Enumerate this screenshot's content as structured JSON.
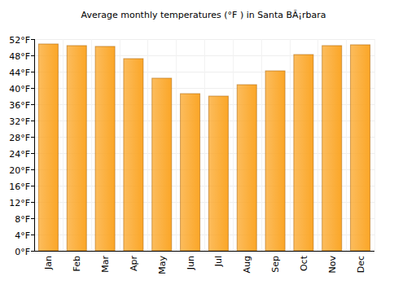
{
  "chart_data": {
    "type": "bar",
    "title": "Average monthly temperatures (°F ) in Santa BÃ¡rbara",
    "categories": [
      "Jan",
      "Feb",
      "Mar",
      "Apr",
      "May",
      "Jun",
      "Jul",
      "Aug",
      "Sep",
      "Oct",
      "Nov",
      "Dec"
    ],
    "values": [
      50.8,
      50.4,
      50.2,
      47.2,
      42.4,
      38.6,
      38.0,
      40.8,
      44.2,
      48.2,
      50.4,
      50.6
    ],
    "color": "#fba627",
    "ylim": [
      0,
      52
    ],
    "yticks": [
      {
        "value": 0,
        "label": "0°F"
      },
      {
        "value": 4,
        "label": "4°F"
      },
      {
        "value": 8,
        "label": "8°F"
      },
      {
        "value": 12,
        "label": "12°F"
      },
      {
        "value": 16,
        "label": "16°F"
      },
      {
        "value": 20,
        "label": "20°F"
      },
      {
        "value": 24,
        "label": "24°F"
      },
      {
        "value": 28,
        "label": "28°F"
      },
      {
        "value": 32,
        "label": "32°F"
      },
      {
        "value": 36,
        "label": "36°F"
      },
      {
        "value": 40,
        "label": "40°F"
      },
      {
        "value": 44,
        "label": "44°F"
      },
      {
        "value": 48,
        "label": "48°F"
      },
      {
        "value": 52,
        "label": "52°F"
      }
    ],
    "grid": true
  }
}
